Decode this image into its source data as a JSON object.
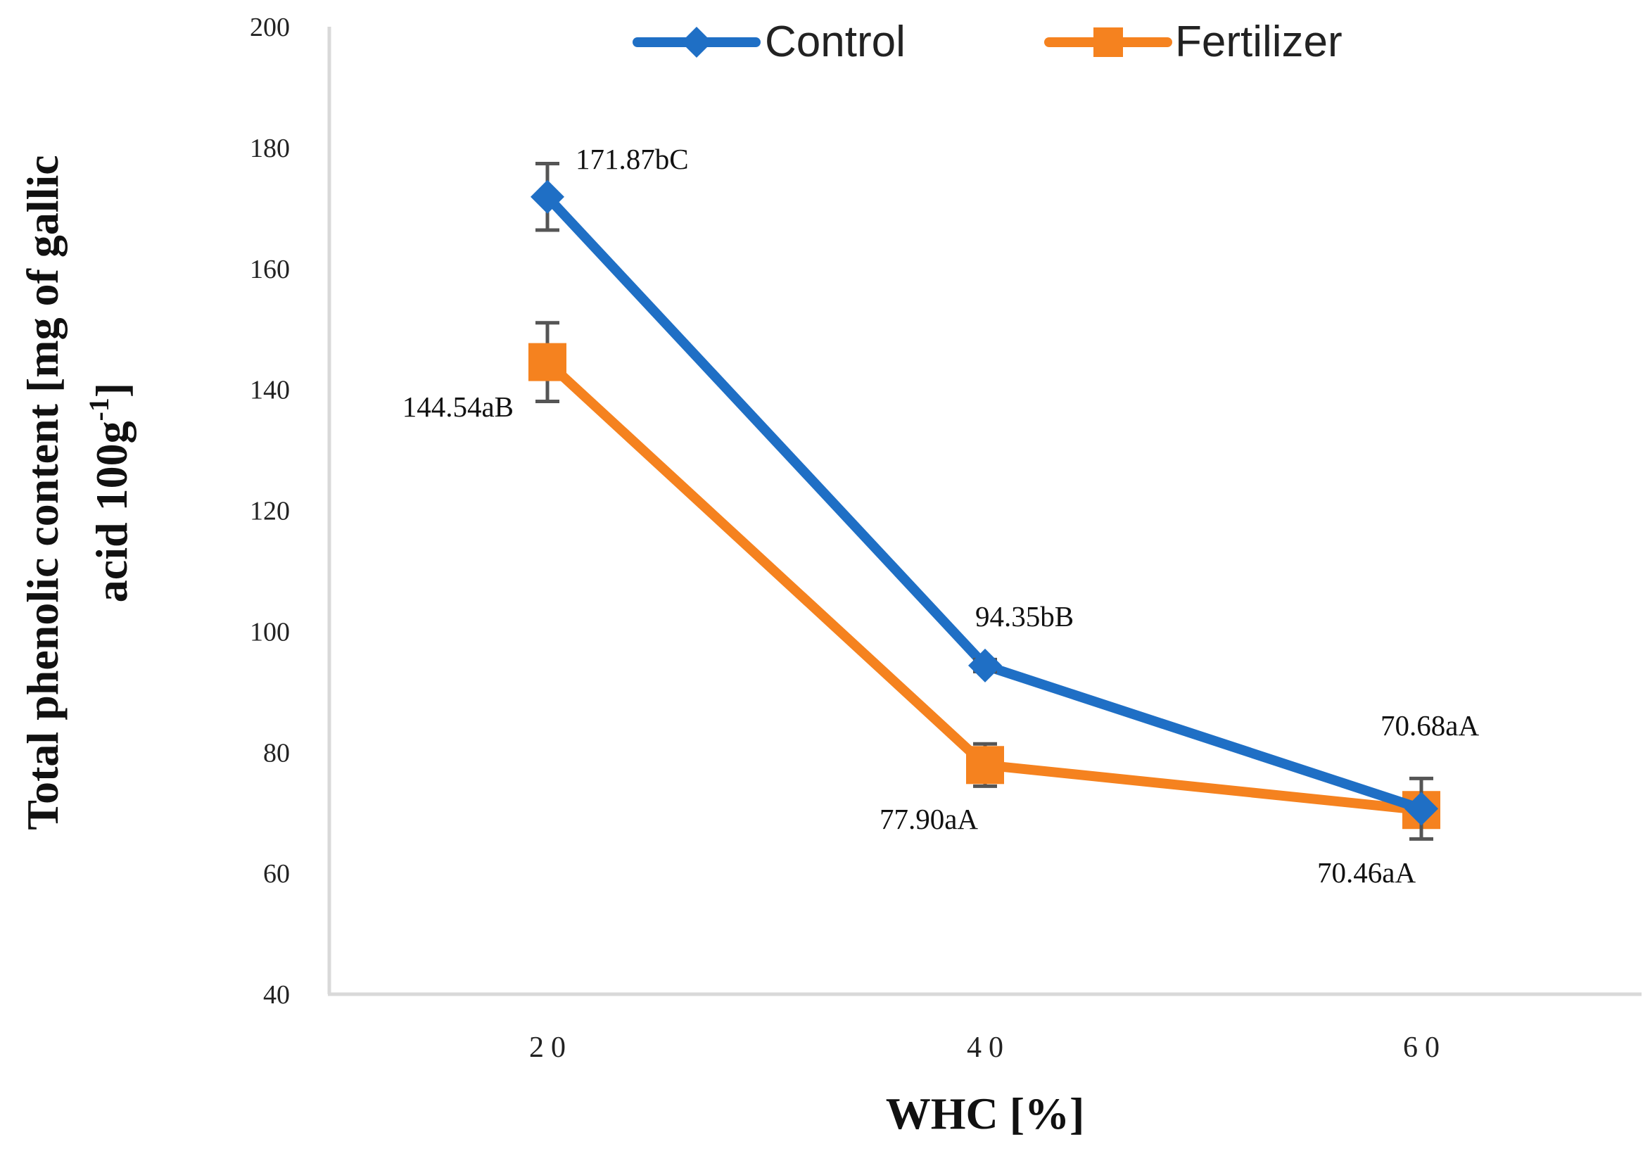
{
  "chart_data": {
    "type": "line",
    "title": "",
    "xlabel": "WHC [%]",
    "ylabel_line1": "Total phenolic content [mg of gallic",
    "ylabel_line2_main": "acid 100g",
    "ylabel_line2_sup": "-1",
    "ylabel_line2_end": "]",
    "ylim": [
      40,
      200
    ],
    "yticks": [
      40,
      60,
      80,
      100,
      120,
      140,
      160,
      180,
      200
    ],
    "ytick_labels": [
      "40",
      "60",
      "80",
      "100",
      "120",
      "140",
      "160",
      "180",
      "200"
    ],
    "categories": [
      "20",
      "40",
      "60"
    ],
    "grid": false,
    "legend_position": "top-center",
    "series": [
      {
        "name": "Control",
        "color": "#1F6FC5",
        "marker": "diamond",
        "values": [
          171.87,
          94.35,
          70.68
        ],
        "errors": [
          5.5,
          1.0,
          5.0
        ],
        "labels": [
          "171.87bC",
          "94.35bB",
          "70.68aA"
        ]
      },
      {
        "name": "Fertilizer",
        "color": "#F5821F",
        "marker": "square",
        "values": [
          144.54,
          77.9,
          70.46
        ],
        "errors": [
          6.5,
          3.5,
          1.5
        ],
        "labels": [
          "144.54aB",
          "77.90aA",
          "70.46aA"
        ]
      }
    ]
  }
}
